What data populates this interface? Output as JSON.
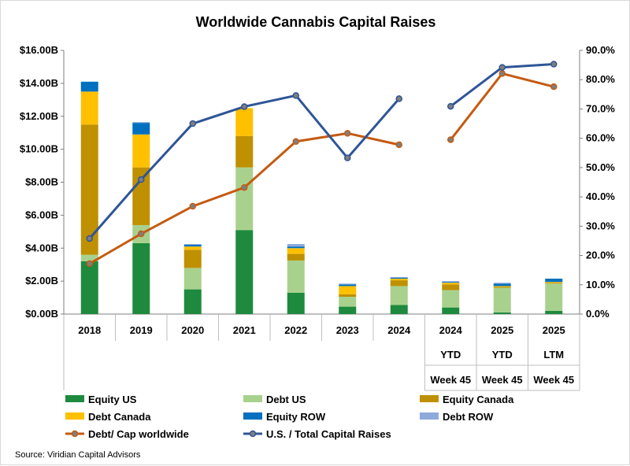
{
  "chart_data": {
    "type": "bar",
    "title": "Worldwide Cannabis Capital Raises",
    "source": "Source: Viridian Capital Advisors",
    "categories": [
      [
        "2018"
      ],
      [
        "2019"
      ],
      [
        "2020"
      ],
      [
        "2021"
      ],
      [
        "2022"
      ],
      [
        "2023"
      ],
      [
        "2024"
      ],
      [
        "2024",
        "YTD",
        "Week 45"
      ],
      [
        "2025",
        "YTD",
        "Week 45"
      ],
      [
        "2025",
        "LTM",
        "Week 45"
      ]
    ],
    "y_left": {
      "ylim": [
        0,
        16
      ],
      "ticks": [
        "$0.00B",
        "$2.00B",
        "$4.00B",
        "$6.00B",
        "$8.00B",
        "$10.00B",
        "$12.00B",
        "$14.00B",
        "$16.00B"
      ]
    },
    "y_right": {
      "ylim": [
        0,
        90
      ],
      "ticks": [
        "0.0%",
        "10.0%",
        "20.0%",
        "30.0%",
        "40.0%",
        "50.0%",
        "60.0%",
        "70.0%",
        "80.0%",
        "90.0%"
      ]
    },
    "stacked_series": [
      {
        "name": "Equity US",
        "color": "#1e8a3e",
        "values": [
          3.2,
          4.3,
          1.5,
          5.1,
          1.3,
          0.45,
          0.55,
          0.4,
          0.1,
          0.2
        ]
      },
      {
        "name": "Debt US",
        "color": "#a9d18e",
        "values": [
          0.4,
          1.1,
          1.3,
          3.8,
          1.95,
          0.6,
          1.15,
          1.05,
          1.5,
          1.65
        ]
      },
      {
        "name": "Equity Canada",
        "color": "#bf9000",
        "values": [
          7.9,
          3.5,
          1.1,
          1.9,
          0.4,
          0.15,
          0.35,
          0.35,
          0.05,
          0.05
        ]
      },
      {
        "name": "Debt Canada",
        "color": "#ffc000",
        "values": [
          2.0,
          2.0,
          0.2,
          1.7,
          0.35,
          0.5,
          0.1,
          0.1,
          0.05,
          0.05
        ]
      },
      {
        "name": "Equity ROW",
        "color": "#0070c0",
        "values": [
          0.6,
          0.7,
          0.1,
          0.0,
          0.1,
          0.1,
          0.05,
          0.05,
          0.15,
          0.2
        ]
      },
      {
        "name": "Debt ROW",
        "color": "#8eaadb",
        "values": [
          0.0,
          0.05,
          0.05,
          0.0,
          0.15,
          0.05,
          0.05,
          0.05,
          0.05,
          0.0
        ]
      }
    ],
    "line_series": [
      {
        "name": "Debt/ Cap worldwide",
        "color": "#c55a11",
        "axis": "right",
        "segments": [
          [
            17.2,
            27.4,
            36.8,
            43.2,
            58.9,
            61.7,
            57.8
          ],
          [
            59.5,
            82.1,
            77.6
          ]
        ]
      },
      {
        "name": "U.S. / Total Capital Raises",
        "color": "#2f5597",
        "axis": "right",
        "segments": [
          [
            25.8,
            45.9,
            65.0,
            70.8,
            74.6,
            53.3,
            73.5
          ],
          [
            70.9,
            84.2,
            85.3
          ]
        ]
      }
    ],
    "legend": {
      "placement": "bottom",
      "order": [
        "Equity US",
        "Debt US",
        "Equity Canada",
        "Debt Canada",
        "Equity ROW",
        "Debt ROW",
        "Debt/ Cap worldwide",
        "U.S. / Total Capital Raises"
      ]
    },
    "grid": false
  }
}
